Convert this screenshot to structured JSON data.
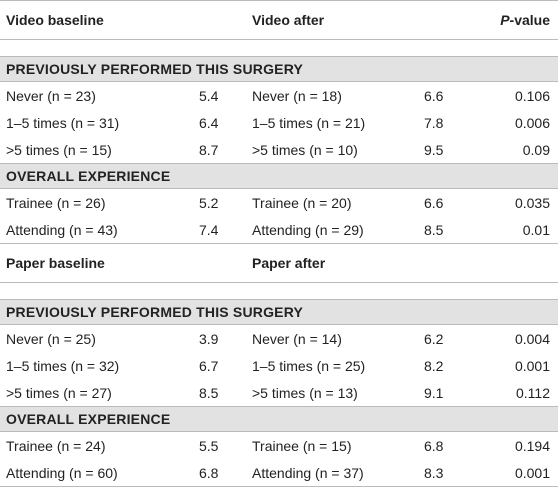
{
  "sections": [
    {
      "header": [
        "Video baseline",
        "Video after",
        "P-value"
      ],
      "groups": [
        {
          "title": "PREVIOUSLY PERFORMED THIS SURGERY",
          "rows": [
            [
              "Never (n = 23)",
              5.4,
              "Never (n = 18)",
              6.6,
              0.106
            ],
            [
              "1–5 times (n = 31)",
              6.4,
              "1–5 times (n = 21)",
              7.8,
              0.006
            ],
            [
              ">5 times (n = 15)",
              8.7,
              ">5 times (n = 10)",
              9.5,
              0.09
            ]
          ]
        },
        {
          "title": "OVERALL EXPERIENCE",
          "rows": [
            [
              "Trainee (n = 26)",
              5.2,
              "Trainee (n = 20)",
              6.6,
              0.035
            ],
            [
              "Attending (n = 43)",
              7.4,
              "Attending (n = 29)",
              8.5,
              0.01
            ]
          ]
        }
      ]
    },
    {
      "header": [
        "Paper baseline",
        "Paper after"
      ],
      "groups": [
        {
          "title": "PREVIOUSLY PERFORMED THIS SURGERY",
          "rows": [
            [
              "Never (n = 25)",
              3.9,
              "Never (n = 14)",
              6.2,
              0.004
            ],
            [
              "1–5 times (n = 32)",
              6.7,
              "1–5 times (n = 25)",
              8.2,
              0.001
            ],
            [
              ">5 times (n = 27)",
              8.5,
              ">5 times (n = 13)",
              9.1,
              0.112
            ]
          ]
        },
        {
          "title": "OVERALL EXPERIENCE",
          "rows": [
            [
              "Trainee (n = 24)",
              5.5,
              "Trainee (n = 15)",
              6.8,
              0.194
            ],
            [
              "Attending (n = 60)",
              6.8,
              "Attending (n = 37)",
              8.3,
              0.001
            ]
          ]
        }
      ]
    }
  ]
}
